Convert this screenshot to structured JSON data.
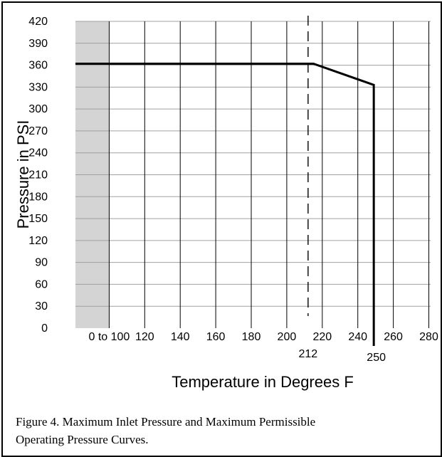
{
  "chart_data": {
    "type": "line",
    "xlabel": "Temperature in Degrees F",
    "ylabel": "Pressure in PSI",
    "x_ticks": [
      {
        "value": 100,
        "label": "0 to 100"
      },
      {
        "value": 120,
        "label": "120"
      },
      {
        "value": 140,
        "label": "140"
      },
      {
        "value": 160,
        "label": "160"
      },
      {
        "value": 180,
        "label": "180"
      },
      {
        "value": 200,
        "label": "200"
      },
      {
        "value": 220,
        "label": "220"
      },
      {
        "value": 240,
        "label": "240"
      },
      {
        "value": 260,
        "label": "260"
      },
      {
        "value": 280,
        "label": "280"
      }
    ],
    "y_ticks": [
      0,
      30,
      60,
      90,
      120,
      150,
      180,
      210,
      240,
      270,
      300,
      330,
      360,
      390,
      420
    ],
    "xlim": [
      81,
      281
    ],
    "ylim": [
      0,
      420
    ],
    "grid": true,
    "shaded_region": {
      "x_start": 81,
      "x_end": 100,
      "color": "#d4d4d4"
    },
    "series": [
      {
        "x": [
          81,
          215,
          249,
          249
        ],
        "y": [
          362,
          362,
          333,
          0
        ],
        "color": "#000000"
      }
    ],
    "reference_lines": [
      {
        "x": 212,
        "label": "212",
        "style": "dashed"
      },
      {
        "x": 250,
        "label": "250",
        "style": "solid"
      }
    ]
  },
  "caption": {
    "line1": "Figure 4. Maximum Inlet Pressure and Maximum Permissible",
    "line2": "Operating Pressure Curves."
  }
}
